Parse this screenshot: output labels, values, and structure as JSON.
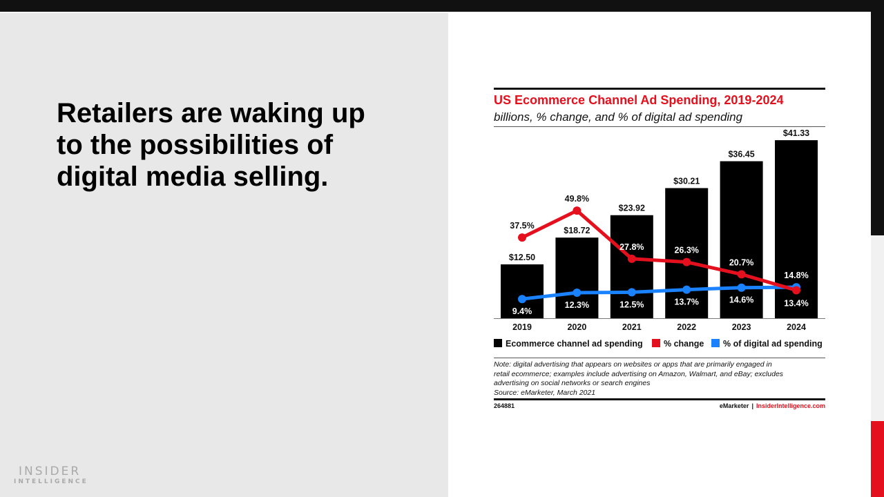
{
  "slide": {
    "headline_lines": [
      "Retailers are waking up",
      "to the possibilities of",
      "digital media selling."
    ],
    "logo_line1": "INSIDER",
    "logo_line2": "INTELLIGENCE"
  },
  "colors": {
    "bar": "#000000",
    "pct_change": "#e5101d",
    "pct_digital": "#1a82ff",
    "title": "#e5101d"
  },
  "chart_data": {
    "type": "bar",
    "title": "US Ecommerce Channel Ad Spending, 2019-2024",
    "subtitle": "billions, % change, and % of digital ad spending",
    "categories": [
      "2019",
      "2020",
      "2021",
      "2022",
      "2023",
      "2024"
    ],
    "series": [
      {
        "name": "Ecommerce channel ad spending",
        "type": "bar",
        "values": [
          12.5,
          18.72,
          23.92,
          30.21,
          36.45,
          41.33
        ],
        "labels": [
          "$12.50",
          "$18.72",
          "$23.92",
          "$30.21",
          "$36.45",
          "$41.33"
        ]
      },
      {
        "name": "% change",
        "type": "line",
        "values": [
          37.5,
          49.8,
          27.8,
          26.3,
          20.7,
          13.4
        ],
        "labels": [
          "37.5%",
          "49.8%",
          "27.8%",
          "26.3%",
          "20.7%",
          "13.4%"
        ]
      },
      {
        "name": "% of digital ad spending",
        "type": "line",
        "values": [
          9.4,
          12.3,
          12.5,
          13.7,
          14.6,
          14.8
        ],
        "labels": [
          "9.4%",
          "12.3%",
          "12.5%",
          "13.7%",
          "14.6%",
          "14.8%"
        ]
      }
    ],
    "legend_position": "bottom",
    "grid": false,
    "note_lines": [
      "Note: digital advertising that appears on websites or apps that are primarily engaged in",
      "retail ecommerce; examples include advertising on Amazon, Walmart, and eBay; excludes",
      "advertising on social networks or search engines",
      "Source: eMarketer, March 2021"
    ],
    "footer_id": "264881",
    "footer_brand": "eMarketer",
    "footer_separator": "|",
    "footer_site": "InsiderIntelligence.com"
  }
}
